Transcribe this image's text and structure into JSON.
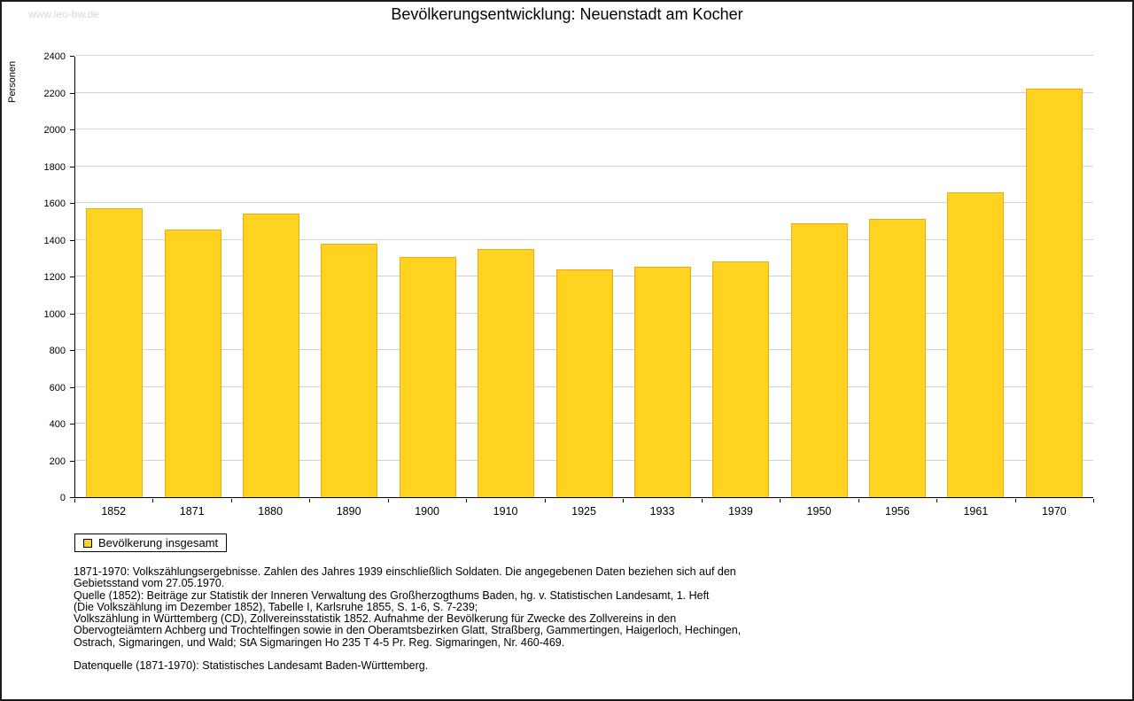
{
  "page": {
    "watermark": "www.leo-bw.de",
    "title": "Bevölkerungsentwicklung: Neuenstadt am Kocher"
  },
  "chart_data": {
    "type": "bar",
    "title": "Bevölkerungsentwicklung: Neuenstadt am Kocher",
    "xlabel": "",
    "ylabel": "Personen",
    "ylim": [
      0,
      2400
    ],
    "ytick_step": 200,
    "grid": true,
    "bar_color": "#FFD320",
    "legend": {
      "label": "Bevölkerung insgesamt",
      "position": "bottom-left"
    },
    "categories": [
      "1852",
      "1871",
      "1880",
      "1890",
      "1900",
      "1910",
      "1925",
      "1933",
      "1939",
      "1950",
      "1956",
      "1961",
      "1970"
    ],
    "values": [
      1570,
      1455,
      1540,
      1380,
      1305,
      1350,
      1240,
      1255,
      1280,
      1490,
      1515,
      1660,
      2220
    ]
  },
  "footnotes": {
    "lines": [
      "1871-1970: Volkszählungsergebnisse. Zahlen des Jahres 1939 einschließlich Soldaten. Die angegebenen Daten beziehen sich auf den",
      "Gebietsstand vom 27.05.1970.",
      "Quelle (1852): Beiträge zur Statistik der Inneren Verwaltung des Großherzogthums Baden, hg. v. Statistischen Landesamt, 1. Heft",
      "(Die Volkszählung im Dezember 1852), Tabelle I, Karlsruhe 1855, S. 1-6, S. 7-239;",
      "Volkszählung in Württemberg (CD), Zollvereinsstatistik 1852. Aufnahme der Bevölkerung für Zwecke des Zollvereins in den",
      "Obervogteiämtern Achberg und Trochtelfingen sowie in den Oberamtsbezirken Glatt, Straßberg, Gammertingen, Haigerloch, Hechingen,",
      "Ostrach, Sigmaringen, und Wald; StA Sigmaringen Ho 235 T 4-5 Pr. Reg. Sigmaringen, Nr. 460-469.",
      "",
      "Datenquelle (1871-1970): Statistisches Landesamt Baden-Württemberg."
    ]
  }
}
